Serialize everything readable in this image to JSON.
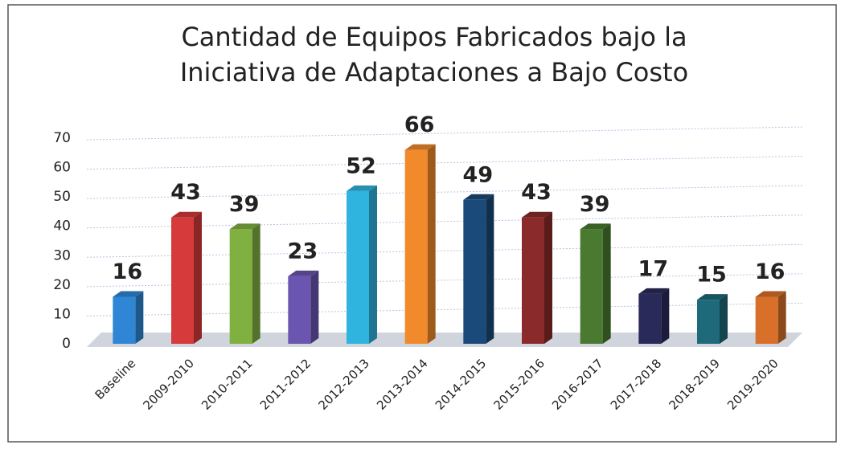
{
  "chart_data": {
    "type": "bar3d",
    "title": [
      "Cantidad de Equipos Fabricados bajo la",
      "Iniciativa de Adaptaciones a Bajo Costo"
    ],
    "categories": [
      "Baseline",
      "2009-2010",
      "2010-2011",
      "2011-2012",
      "2012-2013",
      "2013-2014",
      "2014-2015",
      "2015-2016",
      "2016-2017",
      "2017-2018",
      "2018-2019",
      "2019-2020"
    ],
    "values": [
      16,
      43,
      39,
      23,
      52,
      66,
      49,
      43,
      39,
      17,
      15,
      16
    ],
    "colors": [
      "#2e86d4",
      "#d63a3a",
      "#7fb040",
      "#6a55b0",
      "#2fb4e0",
      "#f08a2a",
      "#1a4a7a",
      "#8a2a2a",
      "#4a7a30",
      "#2a2a5a",
      "#1e6a7a",
      "#d8702a"
    ],
    "ylim": [
      0,
      70
    ],
    "yticks": [
      0,
      10,
      20,
      30,
      40,
      50,
      60,
      70
    ],
    "grid": true,
    "data_labels": true
  }
}
